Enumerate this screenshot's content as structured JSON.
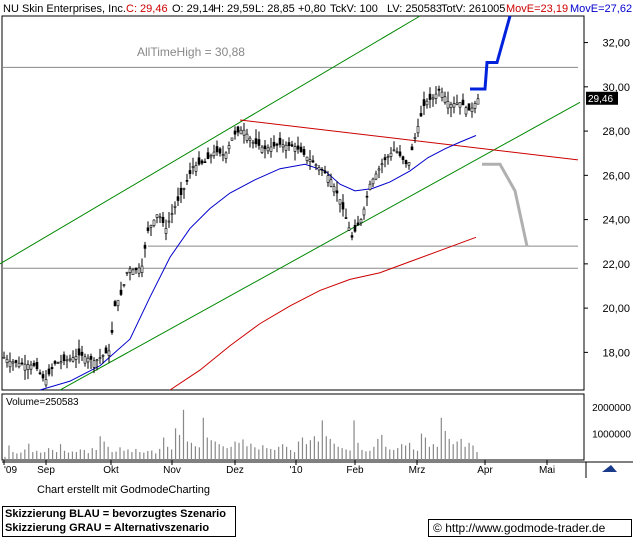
{
  "header": {
    "title": "NU Skin Enterprises, Inc.",
    "close": "C: 29,46",
    "open": "O: 29,14",
    "high": "H: 29,59",
    "low": "L: 28,85",
    "change": "+0,80",
    "tick_volume": "TckV: 100",
    "lv": "LV: 250583",
    "total_volume": "TotV: 261005",
    "move_red": "MovE=23,19",
    "move_blue": "MovE=27,62"
  },
  "annotation": {
    "all_time_high": "AllTimeHigh  =  30,88"
  },
  "price_marker": "29,46",
  "volume_label": "Volume=250583",
  "footer": {
    "credit": "Chart erstellt mit GodmodeCharting",
    "legend_blue": "Skizzierung BLAU = bevorzugtes Szenario",
    "legend_grey": "Skizzierung GRAU = Alternativszenario",
    "url": "http://www.godmode-trader.de"
  },
  "chart_data": {
    "type": "candlestick",
    "title": "NU Skin Enterprises, Inc.",
    "x_tick_labels": [
      "'09",
      "Sep",
      "Okt",
      "Nov",
      "Dez",
      "'10",
      "Feb",
      "Mrz",
      "Apr",
      "Mai"
    ],
    "y_tick_labels": [
      "32,00",
      "30,00",
      "28,00",
      "26,00",
      "24,00",
      "22,00",
      "20,00",
      "18,00"
    ],
    "ylim": [
      16.3,
      33.2
    ],
    "volume_tick_labels": [
      "2000000",
      "1000000"
    ],
    "volume_ylim": [
      0,
      2500000
    ],
    "grid": false,
    "price_path": [
      [
        0,
        17.9
      ],
      [
        10,
        17.6
      ],
      [
        20,
        17.5
      ],
      [
        35,
        17.4
      ],
      [
        45,
        16.7
      ],
      [
        55,
        17.5
      ],
      [
        70,
        17.7
      ],
      [
        80,
        17.9
      ],
      [
        95,
        17.6
      ],
      [
        110,
        18.1
      ],
      [
        115,
        20.1
      ],
      [
        122,
        20.7
      ],
      [
        128,
        21.8
      ],
      [
        135,
        21.7
      ],
      [
        142,
        21.9
      ],
      [
        148,
        23.5
      ],
      [
        158,
        24.3
      ],
      [
        166,
        23.6
      ],
      [
        175,
        24.6
      ],
      [
        183,
        25.3
      ],
      [
        193,
        26.4
      ],
      [
        205,
        26.6
      ],
      [
        215,
        27.1
      ],
      [
        225,
        26.9
      ],
      [
        233,
        27.8
      ],
      [
        243,
        28.1
      ],
      [
        253,
        27.5
      ],
      [
        265,
        27.2
      ],
      [
        280,
        27.4
      ],
      [
        295,
        27.3
      ],
      [
        305,
        26.9
      ],
      [
        318,
        26.4
      ],
      [
        330,
        25.9
      ],
      [
        340,
        24.9
      ],
      [
        352,
        23.2
      ],
      [
        362,
        24.1
      ],
      [
        370,
        25.6
      ],
      [
        383,
        26.6
      ],
      [
        395,
        27.2
      ],
      [
        408,
        26.4
      ],
      [
        416,
        27.9
      ],
      [
        425,
        29.3
      ],
      [
        433,
        29.5
      ],
      [
        440,
        29.9
      ],
      [
        450,
        29.2
      ],
      [
        460,
        29.3
      ],
      [
        470,
        28.9
      ],
      [
        478,
        29.46
      ]
    ],
    "volume": [
      120000,
      550000,
      300000,
      250000,
      280000,
      400000,
      620000,
      300000,
      350000,
      280000,
      300000,
      450000,
      380000,
      300000,
      600000,
      350000,
      280000,
      320000,
      300000,
      400000,
      380000,
      260000,
      450000,
      380000,
      900000,
      700000,
      500000,
      300000,
      320000,
      480000,
      350000,
      400000,
      300000,
      420000,
      300000,
      280000,
      340000,
      360000,
      250000,
      420000,
      850000,
      500000,
      400000,
      1200000,
      950000,
      1900000,
      700000,
      650000,
      520000,
      480000,
      1600000,
      850000,
      750000,
      700000,
      600000,
      520000,
      450000,
      500000,
      700000,
      650000,
      780000,
      520000,
      620000,
      480000,
      400000,
      560000,
      450000,
      420000,
      380000,
      500000,
      600000,
      500000,
      380000,
      300000,
      700000,
      850000,
      600000,
      750000,
      900000,
      700000,
      1500000,
      900000,
      800000,
      620000,
      500000,
      450000,
      400000,
      360000,
      1500000,
      650000,
      380000,
      330000,
      350000,
      500000,
      800000,
      950000,
      500000,
      400000,
      380000,
      450000,
      600000,
      550000,
      650000,
      400000,
      350000,
      1000000,
      850000,
      500000,
      600000,
      500000,
      1600000,
      1100000,
      800000,
      600000,
      700000,
      800000,
      500000,
      650000,
      550000,
      300000
    ],
    "moving_averages": [
      {
        "name": "MovE=27,62",
        "color": "#0000cc",
        "values": [
          [
            40,
            16.3
          ],
          [
            70,
            16.7
          ],
          [
            100,
            17.4
          ],
          [
            130,
            18.6
          ],
          [
            150,
            20.5
          ],
          [
            170,
            22.3
          ],
          [
            190,
            23.6
          ],
          [
            210,
            24.5
          ],
          [
            230,
            25.2
          ],
          [
            255,
            25.8
          ],
          [
            280,
            26.3
          ],
          [
            305,
            26.5
          ],
          [
            325,
            26.2
          ],
          [
            340,
            25.6
          ],
          [
            355,
            25.3
          ],
          [
            372,
            25.4
          ],
          [
            390,
            25.7
          ],
          [
            410,
            26.2
          ],
          [
            428,
            26.8
          ],
          [
            445,
            27.2
          ],
          [
            460,
            27.5
          ],
          [
            476,
            27.8
          ]
        ]
      },
      {
        "name": "MovE=23,19",
        "color": "#cc0000",
        "values": [
          [
            170,
            16.3
          ],
          [
            200,
            17.2
          ],
          [
            230,
            18.3
          ],
          [
            260,
            19.3
          ],
          [
            290,
            20.1
          ],
          [
            320,
            20.8
          ],
          [
            350,
            21.3
          ],
          [
            380,
            21.6
          ],
          [
            410,
            22.1
          ],
          [
            440,
            22.6
          ],
          [
            476,
            23.2
          ]
        ]
      }
    ],
    "annotations": [
      {
        "text": "AllTimeHigh  =  30,88",
        "value": 30.88
      }
    ],
    "horizontal_levels": [
      30.88,
      22.8,
      21.8
    ],
    "trend_channel_upper": [
      [
        0,
        22
      ],
      [
        420,
        33.2
      ]
    ],
    "trend_channel_lower": [
      [
        60,
        16.3
      ],
      [
        580,
        29.3
      ]
    ],
    "resistance_line_red": [
      [
        240,
        28.5
      ],
      [
        578,
        26.7
      ]
    ],
    "scenario_blue": [
      [
        470,
        29.9
      ],
      [
        485,
        29.9
      ],
      [
        487,
        31.1
      ],
      [
        497,
        31.1
      ],
      [
        510,
        33.2
      ]
    ],
    "scenario_grey": [
      [
        482,
        26.5
      ],
      [
        500,
        26.5
      ],
      [
        515,
        25.3
      ],
      [
        527,
        22.8
      ]
    ],
    "current_price": 29.46
  }
}
